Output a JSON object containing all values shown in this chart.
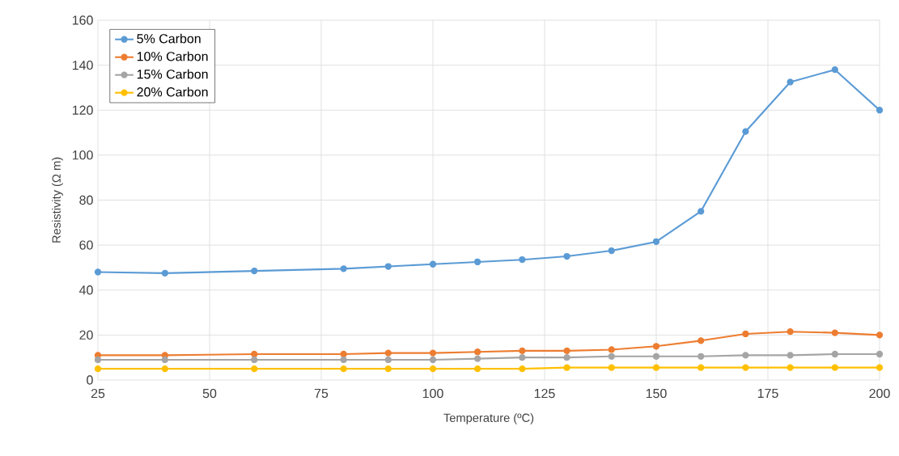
{
  "chart_data": {
    "type": "line",
    "xlabel": "Temperature (ºC)",
    "ylabel": "Resistivity (Ω m)",
    "x": [
      25,
      40,
      60,
      80,
      90,
      100,
      110,
      120,
      130,
      140,
      150,
      160,
      170,
      180,
      190,
      200
    ],
    "series": [
      {
        "name": "5% Carbon",
        "color": "#5b9bd5",
        "values": [
          48,
          47.5,
          48.5,
          49.5,
          50.5,
          51.5,
          52.5,
          53.5,
          55,
          57.5,
          61.5,
          75,
          110.5,
          132.5,
          138,
          120
        ]
      },
      {
        "name": "10% Carbon",
        "color": "#ed7d31",
        "values": [
          11,
          11,
          11.5,
          11.5,
          12,
          12,
          12.5,
          13,
          13,
          13.5,
          15,
          17.5,
          20.5,
          21.5,
          21,
          20
        ]
      },
      {
        "name": "15% Carbon",
        "color": "#a5a5a5",
        "values": [
          9,
          9,
          9,
          9,
          9,
          9,
          9.5,
          10,
          10,
          10.5,
          10.5,
          10.5,
          11,
          11,
          11.5,
          11.5
        ]
      },
      {
        "name": "20% Carbon",
        "color": "#ffc000",
        "values": [
          5,
          5,
          5,
          5,
          5,
          5,
          5,
          5,
          5.5,
          5.5,
          5.5,
          5.5,
          5.5,
          5.5,
          5.5,
          5.5
        ]
      }
    ],
    "xlim": [
      25,
      200
    ],
    "ylim": [
      0,
      160
    ],
    "xticks": [
      25,
      50,
      75,
      100,
      125,
      150,
      175,
      200
    ],
    "yticks": [
      0,
      20,
      40,
      60,
      80,
      100,
      120,
      140,
      160
    ],
    "grid": true,
    "legend": "top left",
    "marker": "circle",
    "line_style": "solid"
  }
}
